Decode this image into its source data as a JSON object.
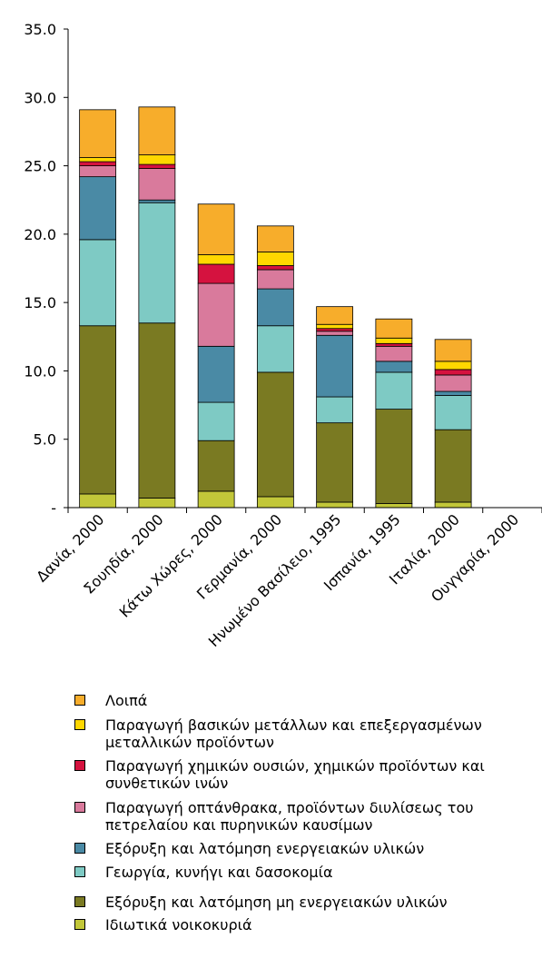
{
  "chart_data": {
    "type": "bar",
    "stacked": true,
    "title": "",
    "ylim": [
      0,
      35
    ],
    "yticks": [
      "-",
      "5.0",
      "10.0",
      "15.0",
      "20.0",
      "25.0",
      "30.0",
      "35.0"
    ],
    "yticks_values": [
      0,
      5,
      10,
      15,
      20,
      25,
      30,
      35
    ],
    "categories": [
      "Δανία, 2000",
      "Σουηδία, 2000",
      "Κάτω Χώρες, 2000",
      "Γερμανία, 2000",
      "Ηνωμένο Βασίλειο, 1995",
      "Ισπανία, 1995",
      "Ιταλία, 2000",
      "Ουγγαρία, 2000"
    ],
    "series": [
      {
        "name": "Ιδιωτικά νοικοκυριά",
        "color": "#c2c739",
        "values": [
          1.0,
          0.7,
          1.2,
          0.8,
          0.4,
          0.3,
          0.4,
          0
        ]
      },
      {
        "name": "Εξόρυξη και λατόμηση μη ενεργειακών υλικών",
        "color": "#7a7a22",
        "values": [
          12.3,
          12.8,
          3.7,
          9.1,
          5.8,
          6.9,
          5.3,
          0
        ]
      },
      {
        "name": "Γεωργία, κυνήγι και δασοκομία",
        "color": "#7ecac4",
        "values": [
          6.3,
          8.8,
          2.8,
          3.4,
          1.9,
          2.7,
          2.5,
          0
        ]
      },
      {
        "name": "Εξόρυξη και λατόμηση ενεργειακών υλικών",
        "color": "#4a8aa5",
        "values": [
          4.6,
          0.2,
          4.1,
          2.7,
          4.5,
          0.8,
          0.3,
          0
        ]
      },
      {
        "name": "Παραγωγή οπτάνθρακα, προϊόντων διυλίσεως του πετρελαίου και πυρηνικών καυσίμων",
        "color": "#d97a9c",
        "values": [
          0.8,
          2.3,
          4.6,
          1.4,
          0.3,
          1.1,
          1.2,
          0
        ]
      },
      {
        "name": "Παραγωγή χημικών ουσιών, χημικών προϊόντων και συνθετικών ινών",
        "color": "#d5123f",
        "values": [
          0.3,
          0.3,
          1.4,
          0.3,
          0.2,
          0.2,
          0.4,
          0
        ]
      },
      {
        "name": "Παραγωγή βασικών μετάλλων και επεξεργασμένων μεταλλικών προϊόντων",
        "color": "#ffd700",
        "values": [
          0.3,
          0.7,
          0.7,
          1.0,
          0.3,
          0.4,
          0.6,
          0
        ]
      },
      {
        "name": "Λοιπά",
        "color": "#f7ad2b",
        "values": [
          3.5,
          3.5,
          3.7,
          1.9,
          1.3,
          1.4,
          1.6,
          0
        ]
      }
    ],
    "legend": "bottom",
    "grid": false
  },
  "legend_items": [
    {
      "name": "Λοιπά",
      "color": "#f7ad2b"
    },
    {
      "name": "Παραγωγή βασικών μετάλλων και επεξεργασμένων μεταλλικών προϊόντων",
      "color": "#ffd700"
    },
    {
      "name": "Παραγωγή χημικών ουσιών, χημικών προϊόντων και συνθετικών ινών",
      "color": "#d5123f"
    },
    {
      "name": "Παραγωγή οπτάνθρακα, προϊόντων διυλίσεως του πετρελαίου και πυρηνικών καυσίμων",
      "color": "#d97a9c"
    },
    {
      "name": "Εξόρυξη και λατόμηση ενεργειακών υλικών",
      "color": "#4a8aa5"
    },
    {
      "name": "Γεωργία, κυνήγι και δασοκομία",
      "color": "#7ecac4"
    },
    {
      "name": "Εξόρυξη και λατόμηση μη ενεργειακών υλικών",
      "color": "#7a7a22"
    },
    {
      "name": "Ιδιωτικά νοικοκυριά",
      "color": "#c2c739"
    }
  ]
}
